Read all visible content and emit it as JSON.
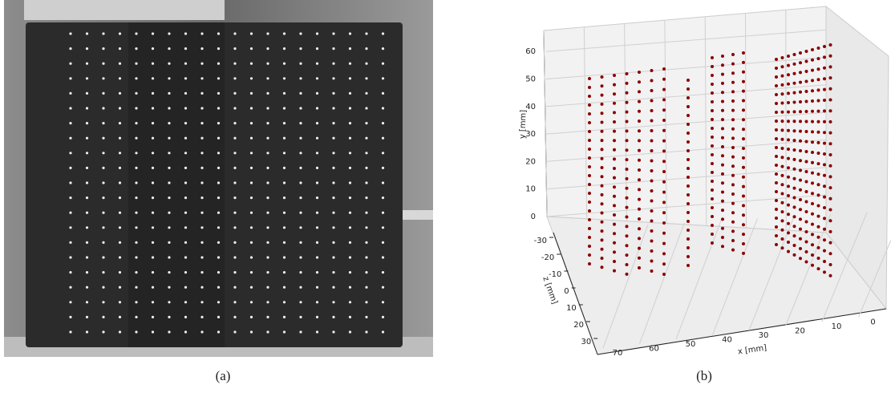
{
  "figure": {
    "panels": [
      {
        "caption": "(a)"
      },
      {
        "caption": "(b)",
        "x_label": "x [mm]",
        "y_label": "y [mm]",
        "z_label": "z [mm]",
        "x_ticks": [
          70,
          60,
          50,
          40,
          30,
          20,
          10,
          0
        ],
        "y_ticks": [
          0,
          10,
          20,
          30,
          40,
          50,
          60
        ],
        "z_ticks": [
          -30,
          -20,
          -10,
          0,
          10,
          20,
          30
        ]
      }
    ]
  }
}
